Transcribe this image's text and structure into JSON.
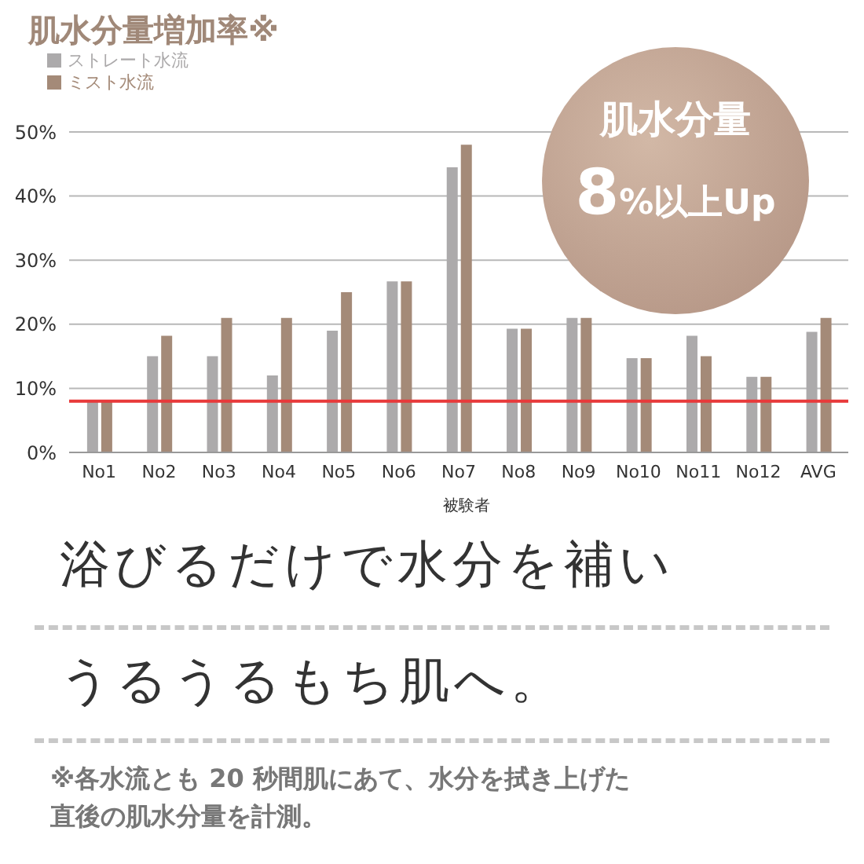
{
  "chart_data": {
    "type": "bar",
    "title": "肌水分量増加率※",
    "xlabel": "被験者",
    "categories": [
      "No1",
      "No2",
      "No3",
      "No4",
      "No5",
      "No6",
      "No7",
      "No8",
      "No9",
      "No10",
      "No11",
      "No12",
      "AVG"
    ],
    "series": [
      {
        "name": "ストレート水流",
        "color": "#acaaab",
        "values": [
          8,
          15,
          15,
          12,
          19,
          26.7,
          44.5,
          19.3,
          21,
          14.7,
          18.2,
          11.8,
          18.8
        ]
      },
      {
        "name": "ミスト水流",
        "color": "#a48a78",
        "values": [
          8,
          18.2,
          21,
          21,
          25,
          26.7,
          48,
          19.3,
          21,
          14.7,
          15,
          11.8,
          21
        ]
      }
    ],
    "ylim": [
      0,
      50
    ],
    "yticks": [
      {
        "value": 0,
        "label": "0%"
      },
      {
        "value": 10,
        "label": "10%"
      },
      {
        "value": 20,
        "label": "20%"
      },
      {
        "value": 30,
        "label": "30%"
      },
      {
        "value": 40,
        "label": "40%"
      },
      {
        "value": 50,
        "label": "50%"
      }
    ],
    "grid": "y",
    "legend": "top left",
    "ref_lines": [
      {
        "axis": "y",
        "value": 8,
        "color": "#e8393a"
      }
    ],
    "annotations": [
      "肌水分量",
      "8%以上Up",
      "浴びるだけで水分を補い",
      "うるうるもち肌へ。",
      "※各水流とも 20 秒間肌にあて、水分を拭き上げた",
      "直後の肌水分量を計測。"
    ]
  }
}
